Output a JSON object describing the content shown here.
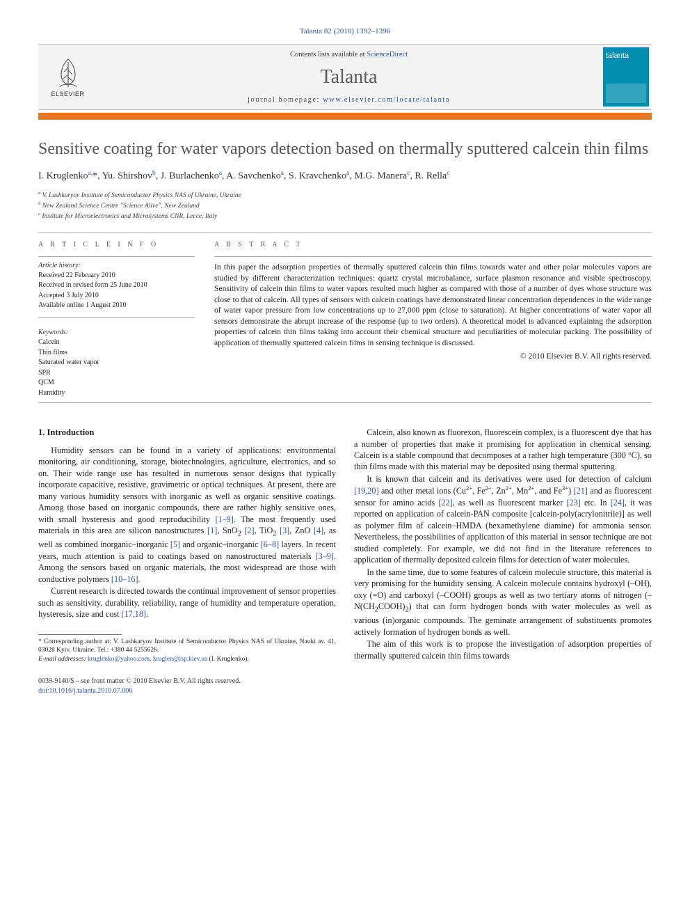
{
  "header": {
    "citation": "Talanta 82 (2010) 1392–1396",
    "contents_prefix": "Contents lists available at ",
    "contents_link": "ScienceDirect",
    "journal": "Talanta",
    "homepage_prefix": "journal homepage: ",
    "homepage_url": "www.elsevier.com/locate/talanta",
    "publisher": "ELSEVIER",
    "cover_label": "talanta",
    "accent_color": "#e87722",
    "cover_color": "#008eb0",
    "link_color": "#2752a8"
  },
  "title": "Sensitive coating for water vapors detection based on thermally sputtered calcein thin films",
  "authors_html": "I. Kruglenko<sup>a,</sup>*, Yu. Shirshov<sup>b</sup>, J. Burlachenko<sup>a</sup>, A. Savchenko<sup>a</sup>, S. Kravchenko<sup>a</sup>, M.G. Manera<sup>c</sup>, R. Rella<sup>c</sup>",
  "affiliations": [
    "a V. Lashkaryov Institute of Semiconductor Physics NAS of Ukraine, Ukraine",
    "b New Zealand Science Centre \"Science Alive\", New Zealand",
    "c Institute for Microelectronics and Microsystems CNR, Lecce, Italy"
  ],
  "article_info": {
    "label": "A R T I C L E   I N F O",
    "history_label": "Article history:",
    "history": [
      "Received 22 February 2010",
      "Received in revised form 25 June 2010",
      "Accepted 3 July 2010",
      "Available online 1 August 2010"
    ],
    "keywords_label": "Keywords:",
    "keywords": [
      "Calcein",
      "Thin films",
      "Saturated water vapor",
      "SPR",
      "QCM",
      "Humidity"
    ]
  },
  "abstract": {
    "label": "A B S T R A C T",
    "text": "In this paper the adsorption properties of thermally sputtered calcein thin films towards water and other polar molecules vapors are studied by different characterization techniques: quartz crystal microbalance, surface plasmon resonance and visible spectroscopy. Sensitivity of calcein thin films to water vapors resulted much higher as compared with those of a number of dyes whose structure was close to that of calcein. All types of sensors with calcein coatings have demonstrated linear concentration dependences in the wide range of water vapor pressure from low concentrations up to 27,000 ppm (close to saturation). At higher concentrations of water vapor all sensors demonstrate the abrupt increase of the response (up to two orders). A theoretical model is advanced explaining the adsorption properties of calcein thin films taking into account their chemical structure and peculiarities of molecular packing. The possibility of application of thermally sputtered calcein films in sensing technique is discussed.",
    "copyright": "© 2010 Elsevier B.V. All rights reserved."
  },
  "body": {
    "left": {
      "heading": "1.  Introduction",
      "paras": [
        "Humidity sensors can be found in a variety of applications: environmental monitoring, air conditioning, storage, biotechnologies, agriculture, electronics, and so on. Their wide range use has resulted in numerous sensor designs that typically incorporate capacitive, resistive, gravimetric or optical techniques. At present, there are many various humidity sensors with inorganic as well as organic sensitive coatings. Among those based on inorganic compounds, there are rather highly sensitive ones, with small hysteresis and good reproducibility <span class=\"reflink\">[1–9]</span>. The most frequently used materials in this area are silicon nanostructures <span class=\"reflink\">[1]</span>, SnO<sub>2</sub> <span class=\"reflink\">[2]</span>, TiO<sub>2</sub> <span class=\"reflink\">[3]</span>, ZnO <span class=\"reflink\">[4]</span>, as well as combined inorganic–inorganic <span class=\"reflink\">[5]</span> and organic–inorganic <span class=\"reflink\">[6–8]</span> layers. In recent years, much attention is paid to coatings based on nanostructured materials <span class=\"reflink\">[3–9]</span>. Among the sensors based on organic materials, the most widespread are those with conductive polymers <span class=\"reflink\">[10–16]</span>.",
        "Current research is directed towards the continual improvement of sensor properties such as sensitivity, durability, reliability, range of humidity and temperature operation, hysteresis, size and cost <span class=\"reflink\">[17,18]</span>."
      ]
    },
    "right": {
      "paras": [
        "Calcein, also known as fluorexon, fluorescein complex, is a fluorescent dye that has a number of properties that make it promising for application in chemical sensing. Calcein is a stable compound that decomposes at a rather high temperature (300 °C), so thin films made with this material may be deposited using thermal sputtering.",
        "It is known that calcein and its derivatives were used for detection of calcium <span class=\"reflink\">[19,20]</span> and other metal ions (Cu<sup>2+</sup>, Fe<sup>2+</sup>, Zn<sup>2+</sup>, Mn<sup>2+</sup>, and Fe<sup>3+</sup>) <span class=\"reflink\">[21]</span> and as fluorescent sensor for amino acids <span class=\"reflink\">[22]</span>, as well as fluorescent marker <span class=\"reflink\">[23]</span> etc. In <span class=\"reflink\">[24]</span>, it was reported on application of calcein-PAN composite [calcein-poly(acrylonitrile)] as well as polymer film of calcein–HMDA (hexamethylene diamine) for ammonia sensor. Nevertheless, the possibilities of application of this material in sensor technique are not studied completely. For example, we did not find in the literature references to application of thermally deposited calcein films for detection of water molecules.",
        "In the same time, due to some features of calcein molecule structure, this material is very promising for the humidity sensing. A calcein molecule contains hydroxyl (–OH), oxy (=O) and carboxyl (–COOH) groups as well as two tertiary atoms of nitrogen (–N(CH<sub>2</sub>COOH)<sub>2</sub>) that can form hydrogen bonds with water molecules as well as various (in)organic compounds. The geminate arrangement of substituents promotes actively formation of hydrogen bonds as well.",
        "The aim of this work is to propose the investigation of adsorption properties of thermally sputtered calcein thin films towards"
      ]
    }
  },
  "footnote": {
    "corr": "* Corresponding author at: V. Lashkaryov Institute of Semiconductor Physics NAS of Ukraine, Nauki av. 41, 03028 Kyiv, Ukraine. Tel.: +380 44 5255626.",
    "email_label": "E-mail addresses:",
    "emails": "kruglenko@yahoo.com, kruglen@isp.kiev.ua",
    "email_person": "(I. Kruglenko)."
  },
  "prod": {
    "line1": "0039-9140/$ – see front matter © 2010 Elsevier B.V. All rights reserved.",
    "doi": "doi:10.1016/j.talanta.2010.07.006"
  }
}
